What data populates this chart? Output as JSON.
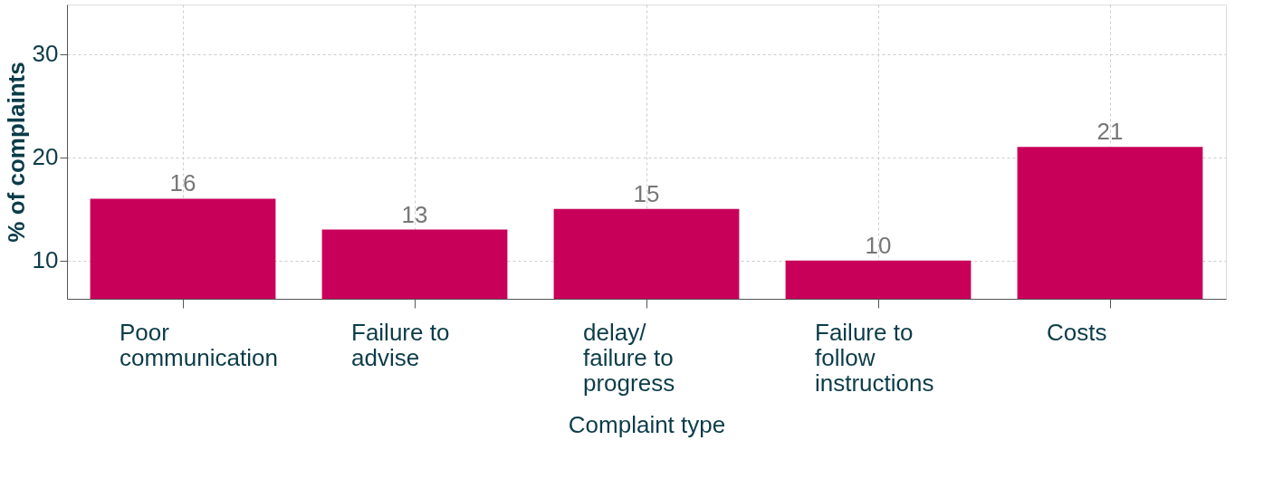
{
  "chart_data": {
    "type": "bar",
    "xlabel": "Complaint type",
    "ylabel": "% of complaints",
    "categories": [
      "Poor\ncommunication",
      "Failure to\nadvise",
      "delay/\nfailure to\nprogress",
      "Failure to\nfollow\ninstructions",
      "Costs"
    ],
    "values": [
      16,
      13,
      15,
      10,
      21
    ],
    "color": "#c8005a",
    "ylim": [
      6.3,
      34.8
    ],
    "yticks": [
      10,
      20,
      30
    ],
    "grid": true,
    "data_labels": true
  }
}
